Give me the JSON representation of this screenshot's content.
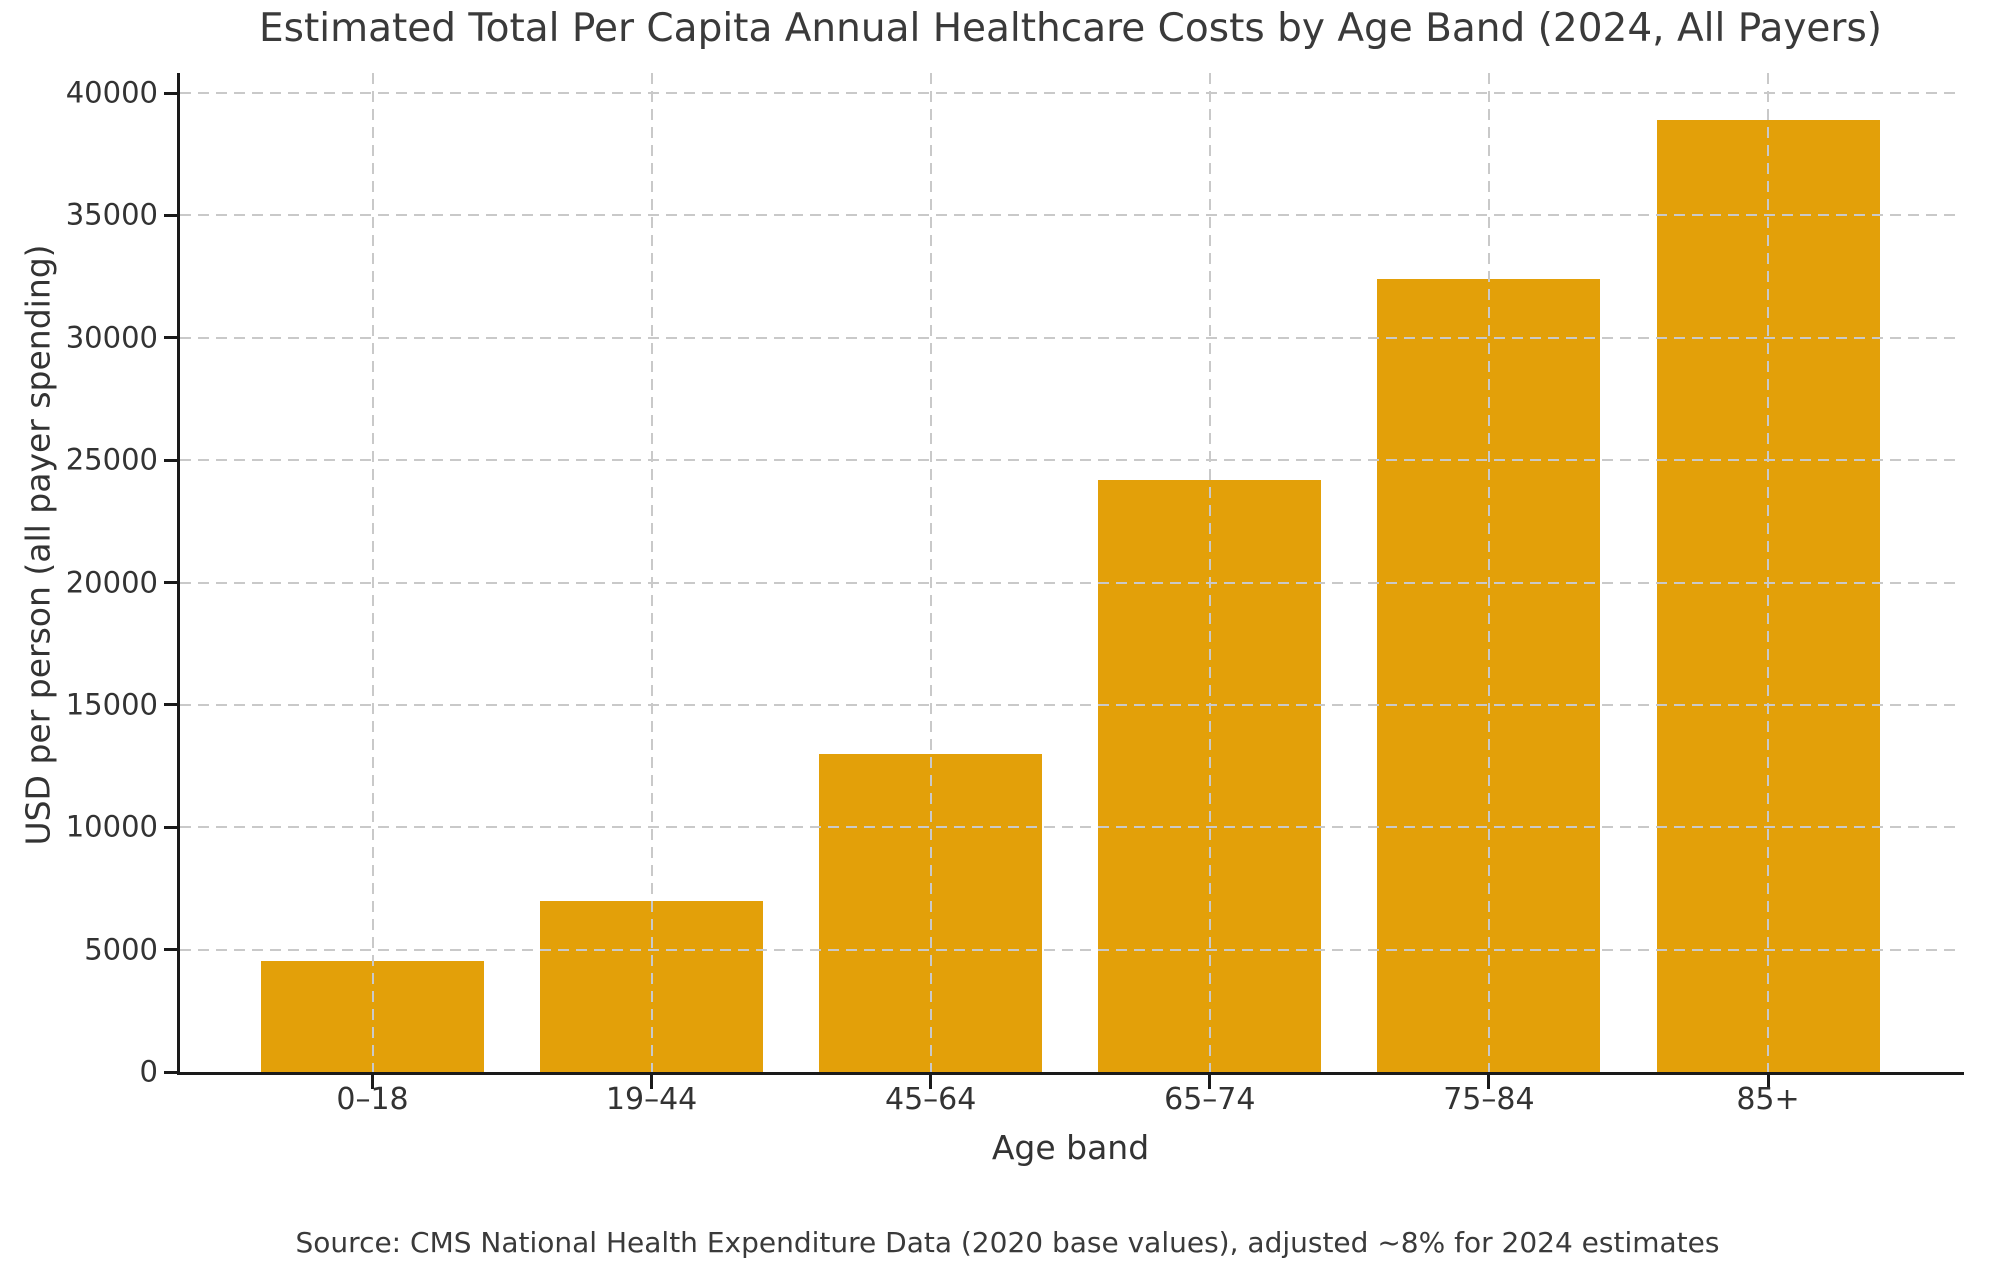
{
  "chart_data": {
    "type": "bar",
    "title": "Estimated Total Per Capita Annual Healthcare Costs by Age Band (2024, All Payers)",
    "xlabel": "Age band",
    "ylabel": "USD per person (all payer spending)",
    "source_note": "Source: CMS National Health Expenditure Data (2020 base values), adjusted ~8% for 2024 estimates",
    "categories": [
      "0–18",
      "19–44",
      "45–64",
      "65–74",
      "75–84",
      "85+"
    ],
    "values": [
      4550,
      7000,
      13000,
      24200,
      32400,
      38880
    ],
    "yticks": [
      0,
      5000,
      10000,
      15000,
      20000,
      25000,
      30000,
      35000,
      40000
    ],
    "ylim": [
      0,
      40000
    ],
    "bar_color": "#E3A009",
    "grid": "dashed",
    "grid_color": "#c9c9c9",
    "axis_color": "#1a1a1a",
    "legend": "none"
  }
}
